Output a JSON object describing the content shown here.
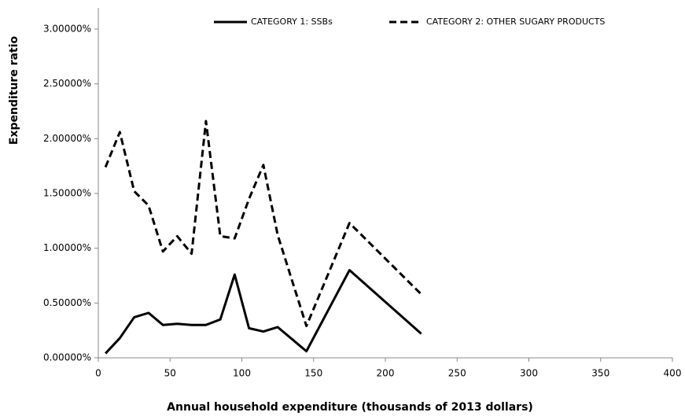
{
  "chart_data": {
    "type": "line",
    "xlabel": "Annual household expenditure (thousands of 2013 dollars)",
    "ylabel": "Expenditure ratio",
    "x": [
      5,
      15,
      25,
      35,
      45,
      55,
      65,
      75,
      85,
      95,
      105,
      115,
      125,
      145,
      175,
      225
    ],
    "series": [
      {
        "name": "CATEGORY 1: SSBs",
        "color": "#000000",
        "dashed": false,
        "values": [
          0.04,
          0.18,
          0.37,
          0.41,
          0.3,
          0.31,
          0.3,
          0.3,
          0.35,
          0.76,
          0.27,
          0.24,
          0.28,
          0.06,
          0.8,
          0.22
        ]
      },
      {
        "name": "CATEGORY 2: OTHER SUGARY PRODUCTS",
        "color": "#000000",
        "dashed": true,
        "values": [
          1.74,
          2.06,
          1.52,
          1.39,
          0.97,
          1.11,
          0.95,
          2.16,
          1.11,
          1.09,
          1.45,
          1.76,
          1.12,
          0.29,
          1.23,
          0.58
        ]
      }
    ],
    "xlim": [
      0,
      400
    ],
    "xticks": [
      0,
      50,
      100,
      150,
      200,
      250,
      300,
      350,
      400
    ],
    "ylim": [
      0,
      3.0
    ],
    "yticks": [
      {
        "value": 0,
        "label": "0.00000%"
      },
      {
        "value": 0.5,
        "label": "0.50000%"
      },
      {
        "value": 1,
        "label": "1.00000%"
      },
      {
        "value": 1.5,
        "label": "1.50000%"
      },
      {
        "value": 2,
        "label": "2.00000%"
      },
      {
        "value": 2.5,
        "label": "2.50000%"
      },
      {
        "value": 3,
        "label": "3.00000%"
      }
    ],
    "grid": false
  }
}
